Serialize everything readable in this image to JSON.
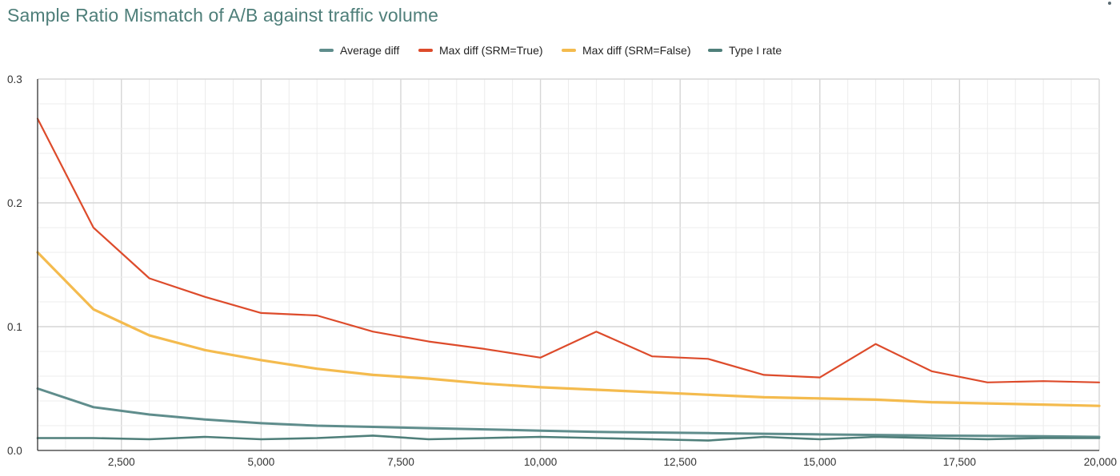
{
  "chart_data": {
    "type": "line",
    "title": "Sample Ratio Mismatch of A/B against traffic volume",
    "xlabel": "",
    "ylabel": "",
    "xlim": [
      1000,
      20000
    ],
    "ylim": [
      0,
      0.3
    ],
    "x_ticks": [
      2500,
      5000,
      7500,
      10000,
      12500,
      15000,
      17500,
      20000
    ],
    "x_tick_labels": [
      "2,500",
      "5,000",
      "7,500",
      "10,000",
      "12,500",
      "15,000",
      "17,500",
      "20,000"
    ],
    "y_ticks": [
      0,
      0.1,
      0.2,
      0.3
    ],
    "y_tick_labels": [
      "0.0",
      "0.1",
      "0.2",
      "0.3"
    ],
    "grid": true,
    "legend_position": "top-center",
    "x": [
      1000,
      2000,
      3000,
      4000,
      5000,
      6000,
      7000,
      8000,
      9000,
      10000,
      11000,
      12000,
      13000,
      14000,
      15000,
      16000,
      17000,
      18000,
      19000,
      20000
    ],
    "series": [
      {
        "name": "Average diff",
        "color": "#5f8d8c",
        "width": 3,
        "values": [
          0.05,
          0.035,
          0.029,
          0.025,
          0.022,
          0.02,
          0.019,
          0.018,
          0.017,
          0.016,
          0.015,
          0.0145,
          0.014,
          0.0135,
          0.013,
          0.0125,
          0.012,
          0.0118,
          0.0115,
          0.011
        ]
      },
      {
        "name": "Max diff (SRM=True)",
        "color": "#dd4b2b",
        "width": 2.2,
        "values": [
          0.268,
          0.18,
          0.139,
          0.124,
          0.111,
          0.109,
          0.096,
          0.088,
          0.082,
          0.075,
          0.096,
          0.076,
          0.074,
          0.061,
          0.059,
          0.086,
          0.064,
          0.055,
          0.056,
          0.055
        ]
      },
      {
        "name": "Max diff (SRM=False)",
        "color": "#f4bb4e",
        "width": 3.2,
        "values": [
          0.16,
          0.114,
          0.093,
          0.081,
          0.073,
          0.066,
          0.061,
          0.058,
          0.054,
          0.051,
          0.049,
          0.047,
          0.045,
          0.043,
          0.042,
          0.041,
          0.039,
          0.038,
          0.037,
          0.036
        ]
      },
      {
        "name": "Type I rate",
        "color": "#4f7f7a",
        "width": 2.6,
        "values": [
          0.01,
          0.01,
          0.009,
          0.011,
          0.009,
          0.01,
          0.012,
          0.009,
          0.01,
          0.011,
          0.01,
          0.009,
          0.008,
          0.011,
          0.009,
          0.011,
          0.01,
          0.009,
          0.01,
          0.01
        ]
      }
    ]
  }
}
